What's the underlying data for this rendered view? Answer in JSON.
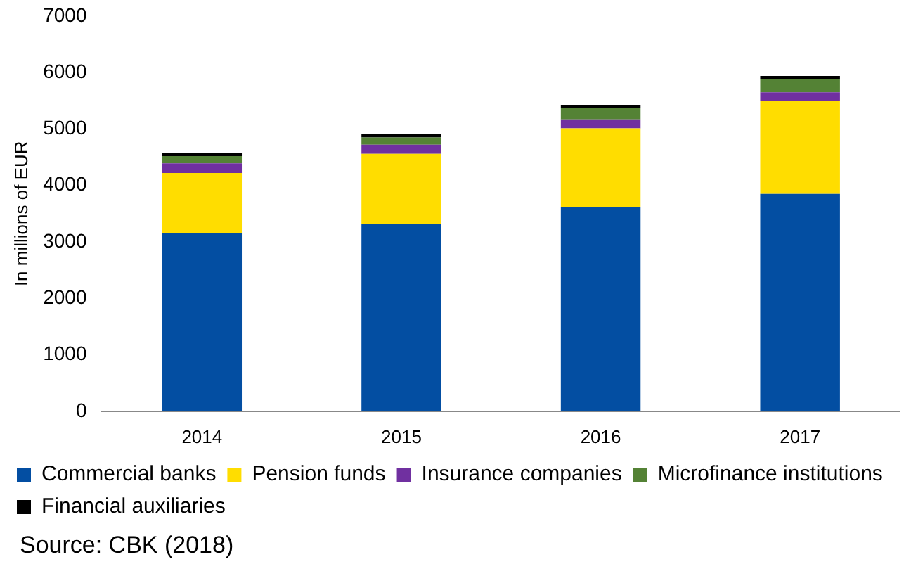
{
  "chart_data": {
    "type": "bar",
    "stacked": true,
    "ylabel": "In millions of EUR",
    "categories": [
      "2014",
      "2015",
      "2016",
      "2017"
    ],
    "series": [
      {
        "name": "Commercial banks",
        "color": "#034ea2",
        "values": [
          3150,
          3320,
          3610,
          3850
        ]
      },
      {
        "name": "Pension funds",
        "color": "#ffdd00",
        "values": [
          1070,
          1240,
          1400,
          1640
        ]
      },
      {
        "name": "Insurance companies",
        "color": "#7030a0",
        "values": [
          170,
          160,
          160,
          160
        ]
      },
      {
        "name": "Microfinance institutions",
        "color": "#548235",
        "values": [
          130,
          130,
          200,
          230
        ]
      },
      {
        "name": "Financial auxiliaries",
        "color": "#000000",
        "values": [
          50,
          60,
          50,
          60
        ]
      }
    ],
    "ylim": [
      0,
      7000
    ],
    "yticks": [
      0,
      1000,
      2000,
      3000,
      4000,
      5000,
      6000,
      7000
    ],
    "grid": false,
    "legend": "bottom",
    "annotations": [
      "Source: CBK (2018)"
    ]
  }
}
